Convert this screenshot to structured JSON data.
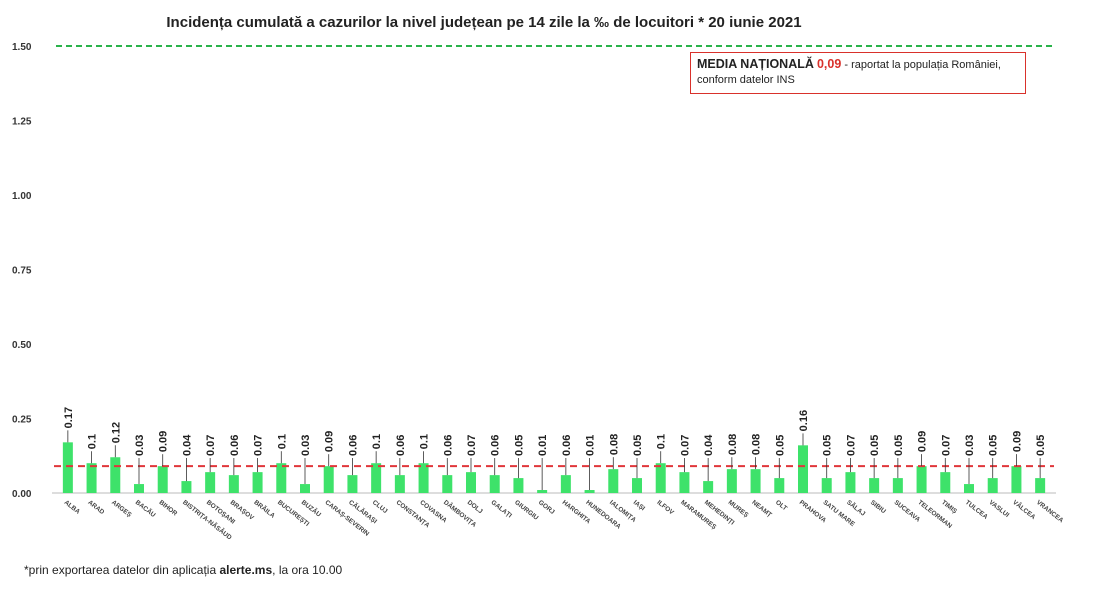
{
  "chart_data": {
    "type": "bar",
    "title": "Incidența cumulată a cazurilor la nivel județean pe 14 zile la ‰ de locuitori *  20 iunie 2021",
    "ylim": [
      0,
      1.5
    ],
    "yticks": [
      "0.00",
      "0.25",
      "0.50",
      "0.75",
      "1.00",
      "1.25",
      "1.50"
    ],
    "ytick_values": [
      0,
      0.25,
      0.5,
      0.75,
      1.0,
      1.25,
      1.5
    ],
    "grid": false,
    "categories": [
      "ALBA",
      "ARAD",
      "ARGEȘ",
      "BACĂU",
      "BIHOR",
      "BISTRIȚA-NĂSĂUD",
      "BOTOȘANI",
      "BRAȘOV",
      "BRĂILA",
      "BUCUREȘTI",
      "BUZĂU",
      "CARAȘ-SEVERIN",
      "CĂLĂRAȘI",
      "CLUJ",
      "CONSTANȚA",
      "COVASNA",
      "DÂMBOVIȚA",
      "DOLJ",
      "GALAȚI",
      "GIURGIU",
      "GORJ",
      "HARGHITA",
      "HUNEDOARA",
      "IALOMIȚA",
      "IAȘI",
      "ILFOV",
      "MARAMUREȘ",
      "MEHEDINȚI",
      "MUREȘ",
      "NEAMȚ",
      "OLT",
      "PRAHOVA",
      "SATU MARE",
      "SĂLAJ",
      "SIBIU",
      "SUCEAVA",
      "TELEORMAN",
      "TIMIȘ",
      "TULCEA",
      "VASLUI",
      "VÂLCEA",
      "VRANCEA"
    ],
    "values": [
      0.17,
      0.1,
      0.12,
      0.03,
      0.09,
      0.04,
      0.07,
      0.06,
      0.07,
      0.1,
      0.03,
      0.09,
      0.06,
      0.1,
      0.06,
      0.1,
      0.06,
      0.07,
      0.06,
      0.05,
      0.01,
      0.06,
      0.01,
      0.08,
      0.05,
      0.1,
      0.07,
      0.04,
      0.08,
      0.08,
      0.05,
      0.16,
      0.05,
      0.07,
      0.05,
      0.05,
      0.09,
      0.07,
      0.03,
      0.05,
      0.09,
      0.05
    ],
    "labels": [
      "0.17",
      "0.1",
      "0.12",
      "0.03",
      "0.09",
      "0.04",
      "0.07",
      "0.06",
      "0.07",
      "0.1",
      "0.03",
      "0.09",
      "0.06",
      "0.1",
      "0.06",
      "0.1",
      "0.06",
      "0.07",
      "0.06",
      "0.05",
      "0.01",
      "0.06",
      "0.01",
      "0.08",
      "0.05",
      "0.1",
      "0.07",
      "0.04",
      "0.08",
      "0.08",
      "0.05",
      "0.16",
      "0.05",
      "0.07",
      "0.05",
      "0.05",
      "0.09",
      "0.07",
      "0.03",
      "0.05",
      "0.09",
      "0.05"
    ],
    "reference_lines": [
      {
        "value": 1.5,
        "color": "#2ab34a",
        "style": "dashed"
      },
      {
        "value": 0.09,
        "color": "#e0363a",
        "style": "dashed"
      }
    ],
    "bar_color": "#3ee26a"
  },
  "legend": {
    "heading": "MEDIA NAȚIONALĂ",
    "value": "0,09",
    "text1": " - raportat la populația României,",
    "text2": "conform datelor INS",
    "border_color": "#d9312b"
  },
  "footnote": {
    "prefix": "*prin exportarea datelor din aplicația ",
    "bold": "alerte.ms",
    "suffix": ", la ora 10.00"
  }
}
